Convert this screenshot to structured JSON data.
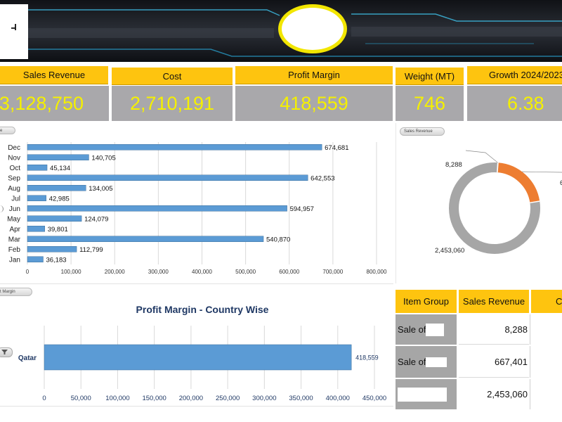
{
  "banner": {
    "logo_icon": "company-logo",
    "emblem_icon": "yellow-ellipse-emblem"
  },
  "kpis": [
    {
      "label": "Sales Revenue",
      "value": "3,128,750"
    },
    {
      "label": "Cost",
      "value": "2,710,191"
    },
    {
      "label": "Profit Margin",
      "value": "418,559"
    },
    {
      "label": "Weight (MT)",
      "value": "746"
    },
    {
      "label": "Growth 2024/2023",
      "value": "6.38"
    }
  ],
  "monthly_panel": {
    "field_button": "e"
  },
  "donut_panel": {
    "field_button": "Sales Revenue"
  },
  "country_panel": {
    "field_button": "t Margin",
    "filter_icon": "filter-icon"
  },
  "colors": {
    "kpi_header": "#fec40f",
    "kpi_value_text": "#f5f000",
    "kpi_value_bg": "#a9a8ab",
    "bar": "#5b9bd5",
    "donut_orange": "#ed7d31",
    "donut_grey": "#a6a6a6",
    "title_blue": "#1f3864"
  },
  "chart_data": [
    {
      "type": "bar",
      "orientation": "horizontal",
      "title": "",
      "categories": [
        "Jan",
        "Feb",
        "Mar",
        "Apr",
        "May",
        "Jun",
        "Jul",
        "Aug",
        "Sep",
        "Oct",
        "Nov",
        "Dec"
      ],
      "values": [
        36183,
        112799,
        540870,
        39801,
        124079,
        594957,
        42985,
        134005,
        642553,
        45134,
        140705,
        674681
      ],
      "data_labels": [
        "36,183",
        "112,799",
        "540,870",
        "39,801",
        "124,079",
        "594,957",
        "42,985",
        "134,005",
        "642,553",
        "45,134",
        "140,705",
        "674,681"
      ],
      "x_ticks": [
        "0",
        "100,000",
        "200,000",
        "300,000",
        "400,000",
        "500,000",
        "600,000",
        "700,000",
        "800,000"
      ],
      "xlim": [
        0,
        800000
      ],
      "grid": true
    },
    {
      "type": "pie",
      "variant": "donut",
      "slices": [
        {
          "label": "8,288",
          "value": 8288
        },
        {
          "label": "",
          "value": 667401
        },
        {
          "label": "2,453,060",
          "value": 2453060
        }
      ],
      "colors": [
        "#a6a6a6",
        "#ed7d31",
        "#a6a6a6"
      ]
    },
    {
      "type": "bar",
      "orientation": "horizontal",
      "title": "Profit Margin - Country Wise",
      "categories": [
        "Qatar"
      ],
      "values": [
        418559
      ],
      "data_labels": [
        "418,559"
      ],
      "x_ticks": [
        "0",
        "50,000",
        "100,000",
        "150,000",
        "200,000",
        "250,000",
        "300,000",
        "350,000",
        "400,000",
        "450,000"
      ],
      "xlim": [
        0,
        450000
      ],
      "grid": true
    }
  ],
  "item_table": {
    "headers": [
      "Item Group",
      "Sales Revenue",
      "C"
    ],
    "rows": [
      {
        "item": "Sale of",
        "revenue": "8,288"
      },
      {
        "item": "Sale of",
        "revenue": "667,401"
      },
      {
        "item": "",
        "revenue": "2,453,060"
      }
    ]
  }
}
